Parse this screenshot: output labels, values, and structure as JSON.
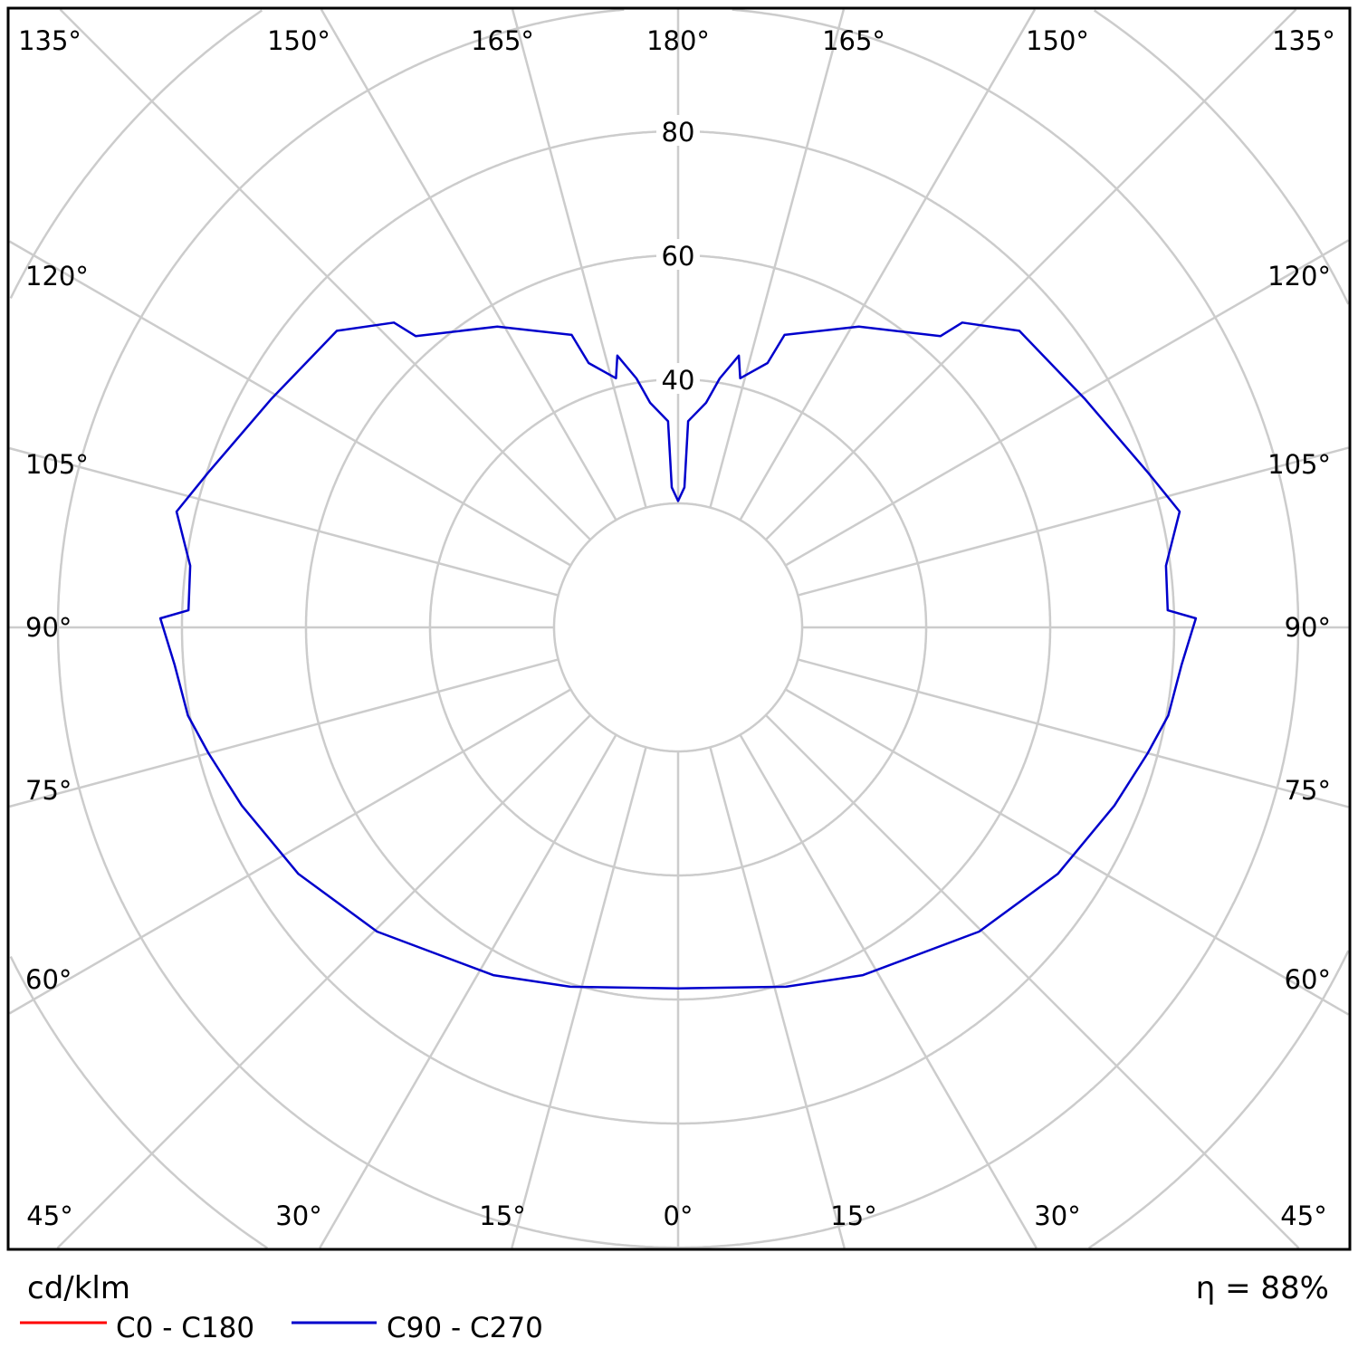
{
  "chart_data": {
    "type": "polar",
    "unit_label": "cd/klm",
    "efficiency_label": "η = 88%",
    "radial_ticks": [
      20,
      40,
      60,
      80,
      100,
      120
    ],
    "radial_tick_labels": [
      "40",
      "60",
      "80"
    ],
    "angle_ticks": [
      0,
      15,
      30,
      45,
      60,
      75,
      90,
      105,
      120,
      135,
      150,
      165,
      180
    ],
    "angle_tick_labels": {
      "top": [
        "135°",
        "150°",
        "165°",
        "180°",
        "165°",
        "150°",
        "135°"
      ],
      "left": [
        "120°",
        "105°",
        "90°",
        "75°",
        "60°"
      ],
      "right": [
        "120°",
        "105°",
        "90°",
        "75°",
        "60°"
      ],
      "bottom": [
        "45°",
        "30°",
        "15°",
        "0°",
        "15°",
        "30°",
        "45°"
      ]
    },
    "grid": true,
    "legend_placement": "bottom-left",
    "series": [
      {
        "name": "C0 - C180",
        "color": "#ff0000",
        "gamma": [],
        "values": []
      },
      {
        "name": "C90 - C270",
        "color": "#0000cc",
        "gamma": [
          0,
          16.7,
          28,
          44.7,
          57,
          67.8,
          75,
          79.8,
          85.7,
          91,
          92,
          97.2,
          103,
          108.2,
          119.4,
          131,
          137,
          138,
          149,
          160,
          161.3,
          166,
          167.4,
          170.5,
          172.9,
          177.2,
          177.4,
          180
        ],
        "values": [
          58.2,
          60.5,
          63.5,
          69,
          73,
          76,
          78.4,
          80.3,
          81.4,
          83.5,
          79,
          79.3,
          83,
          79.8,
          75.2,
          72.9,
          67.2,
          63.2,
          56.6,
          50.2,
          45,
          41.4,
          44.9,
          40.7,
          36.5,
          33.3,
          22.6,
          20.4
        ]
      }
    ]
  }
}
